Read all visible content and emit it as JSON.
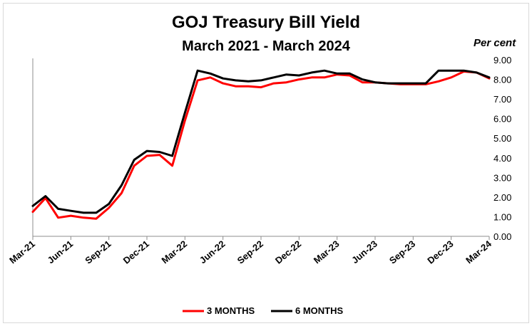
{
  "chart_data": {
    "type": "line",
    "title": "GOJ Treasury Bill Yield",
    "subtitle": "March 2021 - March 2024",
    "ylabel": "Per cent",
    "ylim": [
      0,
      9
    ],
    "y_ticks": [
      "0.00",
      "1.00",
      "2.00",
      "3.00",
      "4.00",
      "5.00",
      "6.00",
      "7.00",
      "8.00",
      "9.00"
    ],
    "x_tick_labels": [
      "Mar-21",
      "Jun-21",
      "Sep-21",
      "Dec-21",
      "Mar-22",
      "Jun-22",
      "Sep-22",
      "Dec-22",
      "Mar-23",
      "Jun-23",
      "Sep-23",
      "Dec-23",
      "Mar-24"
    ],
    "x": [
      "Mar-21",
      "Apr-21",
      "May-21",
      "Jun-21",
      "Jul-21",
      "Aug-21",
      "Sep-21",
      "Oct-21",
      "Nov-21",
      "Dec-21",
      "Jan-22",
      "Feb-22",
      "Mar-22",
      "Apr-22",
      "May-22",
      "Jun-22",
      "Jul-22",
      "Aug-22",
      "Sep-22",
      "Oct-22",
      "Nov-22",
      "Dec-22",
      "Jan-23",
      "Feb-23",
      "Mar-23",
      "Apr-23",
      "May-23",
      "Jun-23",
      "Jul-23",
      "Aug-23",
      "Sep-23",
      "Oct-23",
      "Nov-23",
      "Dec-23",
      "Jan-24",
      "Feb-24",
      "Mar-24"
    ],
    "series": [
      {
        "name": "3 MONTHS",
        "color": "#ff0000",
        "values": [
          1.25,
          1.95,
          0.95,
          1.05,
          0.95,
          0.9,
          1.45,
          2.2,
          3.6,
          4.1,
          4.15,
          3.6,
          5.9,
          7.95,
          8.1,
          7.8,
          7.65,
          7.65,
          7.6,
          7.8,
          7.85,
          8.0,
          8.1,
          8.1,
          8.25,
          8.2,
          7.85,
          7.85,
          7.8,
          7.75,
          7.75,
          7.75,
          7.9,
          8.1,
          8.4,
          8.35,
          8.05
        ]
      },
      {
        "name": "6 MONTHS",
        "color": "#000000",
        "values": [
          1.55,
          2.05,
          1.4,
          1.3,
          1.2,
          1.2,
          1.65,
          2.6,
          3.9,
          4.35,
          4.3,
          4.1,
          6.3,
          8.45,
          8.3,
          8.05,
          7.95,
          7.9,
          7.95,
          8.1,
          8.25,
          8.2,
          8.35,
          8.45,
          8.3,
          8.3,
          8.0,
          7.85,
          7.8,
          7.8,
          7.8,
          7.8,
          8.45,
          8.45,
          8.45,
          8.35,
          8.1
        ]
      }
    ],
    "grid": false,
    "legend_position": "bottom"
  }
}
